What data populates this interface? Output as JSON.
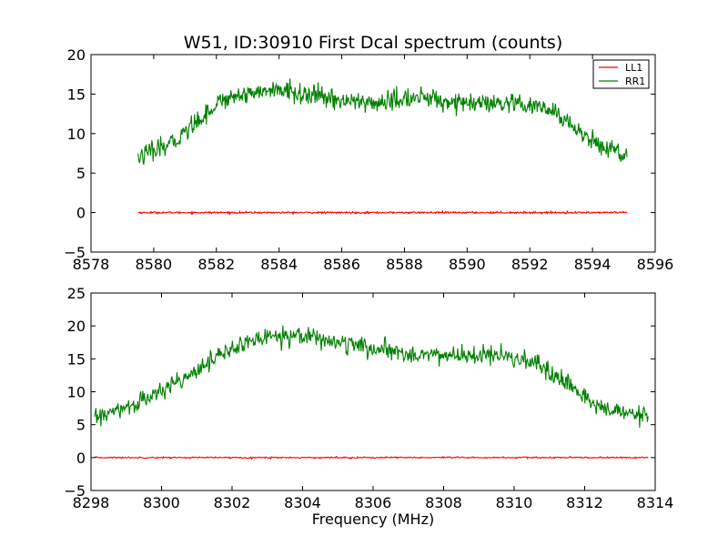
{
  "chart_data": [
    {
      "type": "line",
      "title": "W51, ID:30910 First Dcal spectrum (counts)",
      "xlabel": "",
      "ylabel": "",
      "xlim": [
        8578,
        8596
      ],
      "ylim": [
        -5,
        20
      ],
      "xticks": [
        "8578",
        "8580",
        "8582",
        "8584",
        "8586",
        "8588",
        "8590",
        "8592",
        "8594",
        "8596"
      ],
      "yticks": [
        "−5",
        "0",
        "5",
        "10",
        "15",
        "20"
      ],
      "legend": {
        "placement": "top-right",
        "entries": [
          "LL1",
          "RR1"
        ]
      },
      "series": [
        {
          "name": "LL1",
          "color": "#ff0000",
          "x_range": [
            8579.5,
            8595.1
          ],
          "profile_x": [
            8579.5,
            8595.1
          ],
          "profile_y": [
            0,
            0
          ],
          "noise": 0.08
        },
        {
          "name": "RR1",
          "color": "#008000",
          "x_range": [
            8579.5,
            8595.1
          ],
          "profile_x": [
            8579.5,
            8580.5,
            8581.5,
            8582.2,
            8583.0,
            8584.0,
            8585.5,
            8587.0,
            8588.5,
            8590.0,
            8591.5,
            8592.5,
            8593.2,
            8594.0,
            8595.1
          ],
          "profile_y": [
            7.0,
            8.5,
            12.0,
            14.3,
            15.2,
            15.5,
            14.5,
            13.8,
            14.6,
            13.8,
            13.6,
            13.2,
            11.5,
            9.0,
            7.2
          ],
          "noise": 0.9
        }
      ]
    },
    {
      "type": "line",
      "title": "",
      "xlabel": "Frequency (MHz)",
      "ylabel": "",
      "xlim": [
        8298,
        8314
      ],
      "ylim": [
        -5,
        25
      ],
      "xticks": [
        "8298",
        "8300",
        "8302",
        "8304",
        "8306",
        "8308",
        "8310",
        "8312",
        "8314"
      ],
      "yticks": [
        "−5",
        "0",
        "5",
        "10",
        "15",
        "20",
        "25"
      ],
      "series": [
        {
          "name": "",
          "color": "#ff0000",
          "x_range": [
            8298.1,
            8313.8
          ],
          "profile_x": [
            8298.1,
            8313.8
          ],
          "profile_y": [
            0,
            0
          ],
          "noise": 0.08
        },
        {
          "name": "",
          "color": "#008000",
          "x_range": [
            8298.1,
            8313.8
          ],
          "profile_x": [
            8298.1,
            8299.0,
            8300.0,
            8301.0,
            8302.0,
            8303.0,
            8304.0,
            8305.0,
            8306.5,
            8308.0,
            8309.5,
            8310.5,
            8311.5,
            8312.5,
            8313.8
          ],
          "profile_y": [
            6.0,
            7.5,
            10.0,
            13.5,
            16.5,
            18.5,
            18.7,
            17.5,
            16.0,
            15.5,
            15.5,
            14.5,
            11.0,
            7.5,
            6.0
          ],
          "noise": 1.0
        }
      ]
    }
  ]
}
